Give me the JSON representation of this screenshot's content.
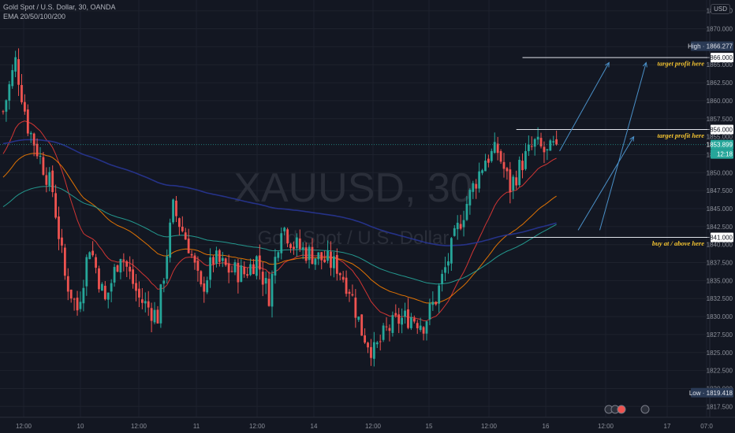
{
  "header": {
    "symbol_line": "Gold Spot / U.S. Dollar, 30, OANDA",
    "indicator_line": "EMA 20/50/100/200"
  },
  "currency_button": "USD",
  "watermark": {
    "ticker": "XAUUSD, 30",
    "name": "Gold Spot / U.S. Dollar"
  },
  "colors": {
    "background": "#131722",
    "grid": "#1e222d",
    "up_candle": "#26a69a",
    "down_candle": "#ef5350",
    "ema20": "#e53935",
    "ema50": "#f57c00",
    "ema100": "#26a69a",
    "ema200": "#283593",
    "annotation": "#f2c230",
    "arrow": "#4a90c8",
    "last_price_tag": "#26a69a",
    "high_low_tag": "#2a3a55"
  },
  "chart_data": {
    "type": "candlestick",
    "title": "Gold Spot / U.S. Dollar, 30, OANDA",
    "y_axis": {
      "range": [
        1816,
        1874
      ],
      "ticks": [
        1817.5,
        1820,
        1822.5,
        1825,
        1827.5,
        1830,
        1832.5,
        1835,
        1837.5,
        1840,
        1842.5,
        1845,
        1847.5,
        1850,
        1852.5,
        1855,
        1857.5,
        1860,
        1862.5,
        1865,
        1867.5,
        1870,
        1872.5
      ],
      "tick_labels": [
        "1817.500",
        "1820.000",
        "1822.500",
        "1825.000",
        "1827.500",
        "1830.000",
        "1832.500",
        "1835.000",
        "1837.500",
        "1840.000",
        "1842.500",
        "1845.000",
        "1847.500",
        "1850.000",
        "1852.500",
        "1855.000",
        "1857.500",
        "1860.000",
        "1862.500",
        "1865.000",
        "1867.500",
        "1870.000",
        "1872.500"
      ]
    },
    "x_axis": {
      "tick_labels": [
        "12:00",
        "10",
        "12:00",
        "11",
        "12:00",
        "14",
        "12:00",
        "15",
        "12:00",
        "16",
        "12:00",
        "17",
        "07:0"
      ]
    },
    "grid": true,
    "ema_series": [
      {
        "name": "EMA 20",
        "period": 20
      },
      {
        "name": "EMA 50",
        "period": 50
      },
      {
        "name": "EMA 100",
        "period": 100
      },
      {
        "name": "EMA 200",
        "period": 200
      }
    ],
    "ema_seed": [
      1852.0,
      1849.0,
      1845.0,
      1854.0
    ],
    "price_path": [
      [
        0,
        1858.5
      ],
      [
        4,
        1865.5
      ],
      [
        8,
        1856.5
      ],
      [
        12,
        1852.0
      ],
      [
        16,
        1847.5
      ],
      [
        20,
        1835.5
      ],
      [
        24,
        1831.0
      ],
      [
        28,
        1840.0
      ],
      [
        33,
        1832.0
      ],
      [
        38,
        1839.0
      ],
      [
        44,
        1832.5
      ],
      [
        50,
        1830.0
      ],
      [
        55,
        1845.0
      ],
      [
        60,
        1840.0
      ],
      [
        64,
        1833.5
      ],
      [
        68,
        1838.0
      ],
      [
        73,
        1836.5
      ],
      [
        78,
        1836.0
      ],
      [
        82,
        1838.0
      ],
      [
        86,
        1833.0
      ],
      [
        90,
        1843.0
      ],
      [
        94,
        1840.0
      ],
      [
        98,
        1839.0
      ],
      [
        103,
        1838.0
      ],
      [
        108,
        1837.0
      ],
      [
        112,
        1834.0
      ],
      [
        116,
        1828.0
      ],
      [
        120,
        1825.0
      ],
      [
        124,
        1828.0
      ],
      [
        128,
        1829.5
      ],
      [
        132,
        1830.0
      ],
      [
        136,
        1829.0
      ],
      [
        140,
        1832.5
      ],
      [
        144,
        1838.0
      ],
      [
        148,
        1843.5
      ],
      [
        152,
        1848.0
      ],
      [
        156,
        1852.0
      ],
      [
        160,
        1853.0
      ],
      [
        164,
        1848.0
      ],
      [
        168,
        1851.5
      ],
      [
        172,
        1854.0
      ],
      [
        176,
        1852.5
      ],
      [
        179,
        1853.9
      ]
    ],
    "volatility": 1.6,
    "candle_count": 180,
    "last_price": 1853.899,
    "countdown": "12:18",
    "levels": [
      {
        "price": 1866.0,
        "label": "1866.000",
        "from_index": 168
      },
      {
        "price": 1856.0,
        "label": "1856.000",
        "from_index": 166
      },
      {
        "price": 1841.0,
        "label": "1841.000",
        "from_index": 166
      }
    ],
    "high": {
      "label": "High",
      "value": "1866.277",
      "price": 1866.277
    },
    "low": {
      "label": "Low",
      "value": "1819.418",
      "price": 1819.418
    },
    "annotations": [
      {
        "text": "target profit here",
        "price": 1865.2
      },
      {
        "text": "target profit here",
        "price": 1855.2
      },
      {
        "text": "buy at / above here",
        "price": 1840.2
      }
    ],
    "arrows": [
      {
        "from": [
          180,
          1853.0
        ],
        "to": [
          196,
          1865.3
        ]
      },
      {
        "from": [
          193,
          1842.0
        ],
        "to": [
          208,
          1865.3
        ]
      },
      {
        "from": [
          186,
          1842.0
        ],
        "to": [
          204,
          1855.0
        ]
      }
    ]
  }
}
